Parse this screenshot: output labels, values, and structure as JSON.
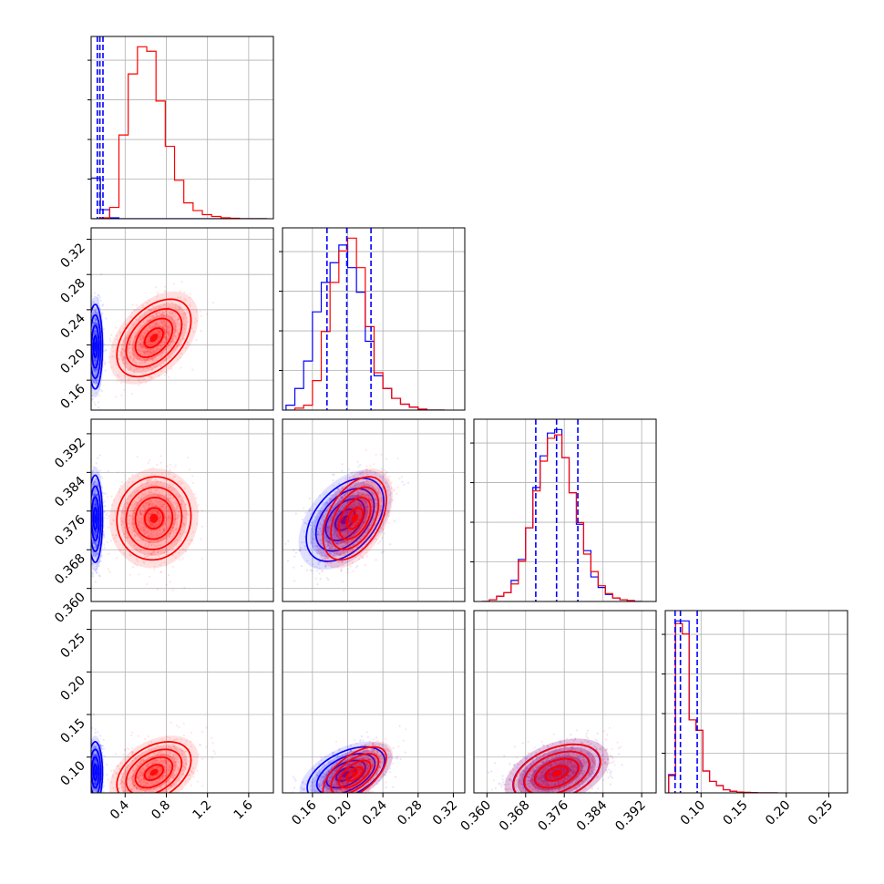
{
  "chart_data": {
    "type": "corner",
    "grid": true,
    "series": [
      {
        "color": "#0000ff"
      },
      {
        "color": "#ff0000"
      }
    ],
    "quantile_lines_color": "#0000ff",
    "parameters": [
      {
        "id": "p0",
        "ticks": [
          0.4,
          0.8,
          1.2,
          1.6
        ],
        "tick_labels": [
          "0.4",
          "0.8",
          "1.2",
          "1.6"
        ]
      },
      {
        "id": "p1",
        "ticks": [
          0.16,
          0.2,
          0.24,
          0.28,
          0.32
        ],
        "tick_labels": [
          "0.16",
          "0.20",
          "0.24",
          "0.28",
          "0.32"
        ]
      },
      {
        "id": "p2",
        "ticks": [
          0.36,
          0.368,
          0.376,
          0.384,
          0.392
        ],
        "tick_labels": [
          "0.360",
          "0.368",
          "0.376",
          "0.384",
          "0.392"
        ]
      },
      {
        "id": "p3",
        "ticks": [
          0.1,
          0.15,
          0.2,
          0.25
        ],
        "tick_labels": [
          "0.10",
          "0.15",
          "0.20",
          "0.25"
        ]
      }
    ],
    "ranges": [
      [
        0.07,
        1.84
      ],
      [
        0.126,
        0.333
      ],
      [
        0.3573,
        0.395
      ],
      [
        0.058,
        0.272
      ]
    ],
    "histograms": [
      {
        "bin_edges": [
          0.07,
          0.16,
          0.25,
          0.34,
          0.43,
          0.52,
          0.61,
          0.7,
          0.79,
          0.88,
          0.97,
          1.06,
          1.15,
          1.24,
          1.33,
          1.42,
          1.51,
          1.6,
          1.69,
          1.78
        ],
        "blue": [
          0.9,
          0.2,
          0.02,
          0,
          0,
          0,
          0,
          0,
          0,
          0,
          0,
          0,
          0,
          0,
          0,
          0,
          0,
          0,
          0
        ],
        "red": [
          0,
          0.02,
          0.25,
          1.85,
          3.2,
          3.8,
          3.7,
          2.6,
          1.6,
          0.85,
          0.35,
          0.18,
          0.09,
          0.05,
          0.02,
          0.01,
          0,
          0,
          0
        ],
        "quantiles": [
          0.13,
          0.155,
          0.185
        ]
      },
      {
        "bin_edges": [
          0.13,
          0.14,
          0.15,
          0.16,
          0.17,
          0.18,
          0.19,
          0.2,
          0.21,
          0.22,
          0.23,
          0.24,
          0.25,
          0.26,
          0.27,
          0.28,
          0.29,
          0.3,
          0.31
        ],
        "blue": [
          0.05,
          0.22,
          0.5,
          1.0,
          1.3,
          1.5,
          1.68,
          1.45,
          1.2,
          0.7,
          0.35,
          0.22,
          0.12,
          0.06,
          0.03,
          0.01,
          0,
          0
        ],
        "red": [
          0,
          0.02,
          0.05,
          0.3,
          0.8,
          1.3,
          1.62,
          1.75,
          1.45,
          0.85,
          0.38,
          0.22,
          0.12,
          0.06,
          0.03,
          0.01,
          0,
          0
        ],
        "quantiles": [
          0.1765,
          0.199,
          0.2265
        ]
      },
      {
        "bin_edges": [
          0.359,
          0.3605,
          0.362,
          0.3635,
          0.365,
          0.3665,
          0.368,
          0.3695,
          0.371,
          0.3725,
          0.374,
          0.3755,
          0.377,
          0.3785,
          0.38,
          0.3815,
          0.383,
          0.3845,
          0.386,
          0.3875,
          0.389,
          0.3905,
          0.392
        ],
        "blue": [
          0,
          0.01,
          0.03,
          0.05,
          0.12,
          0.24,
          0.42,
          0.65,
          0.83,
          0.96,
          0.98,
          0.82,
          0.62,
          0.44,
          0.29,
          0.14,
          0.08,
          0.04,
          0.02,
          0.01,
          0.005,
          0
        ],
        "red": [
          0,
          0.01,
          0.03,
          0.05,
          0.1,
          0.23,
          0.42,
          0.63,
          0.8,
          0.93,
          0.95,
          0.82,
          0.62,
          0.45,
          0.27,
          0.17,
          0.09,
          0.045,
          0.02,
          0.01,
          0.005,
          0
        ],
        "quantiles": [
          0.3701,
          0.3744,
          0.3788
        ]
      },
      {
        "bin_edges": [
          0.062,
          0.07,
          0.078,
          0.086,
          0.094,
          0.102,
          0.11,
          0.118,
          0.126,
          0.134,
          0.142,
          0.15,
          0.158,
          0.166,
          0.174,
          0.182,
          0.19
        ],
        "blue": [
          0.35,
          3.3,
          3.3,
          1.4,
          1.2,
          0.42,
          0.22,
          0.14,
          0.06,
          0.03,
          0.015,
          0.01,
          0.005,
          0,
          0,
          0
        ],
        "red": [
          0.33,
          3.25,
          3.05,
          1.4,
          1.2,
          0.42,
          0.22,
          0.14,
          0.06,
          0.03,
          0.015,
          0.01,
          0.005,
          0,
          0,
          0
        ],
        "quantiles": [
          0.0695,
          0.0758,
          0.0955
        ]
      }
    ],
    "joint_distributions": [
      {
        "x": 0,
        "y": 1,
        "blue": {
          "mx": 0.11,
          "my": 0.198,
          "sx": 0.035,
          "sy": 0.024,
          "rho": 0.0
        },
        "red": {
          "mx": 0.68,
          "my": 0.208,
          "sx": 0.18,
          "sy": 0.022,
          "rho": 0.45
        }
      },
      {
        "x": 0,
        "y": 2,
        "blue": {
          "mx": 0.11,
          "my": 0.3744,
          "sx": 0.035,
          "sy": 0.0045,
          "rho": 0.0
        },
        "red": {
          "mx": 0.68,
          "my": 0.3745,
          "sx": 0.18,
          "sy": 0.0043,
          "rho": 0.05
        }
      },
      {
        "x": 1,
        "y": 2,
        "blue": {
          "mx": 0.197,
          "my": 0.3742,
          "sx": 0.022,
          "sy": 0.0043,
          "rho": 0.45
        },
        "red": {
          "mx": 0.208,
          "my": 0.3745,
          "sx": 0.018,
          "sy": 0.0043,
          "rho": 0.45
        }
      },
      {
        "x": 0,
        "y": 3,
        "blue": {
          "mx": 0.11,
          "my": 0.082,
          "sx": 0.035,
          "sy": 0.018,
          "rho": 0.0
        },
        "red": {
          "mx": 0.68,
          "my": 0.082,
          "sx": 0.18,
          "sy": 0.018,
          "rho": 0.4
        }
      },
      {
        "x": 1,
        "y": 3,
        "blue": {
          "mx": 0.198,
          "my": 0.08,
          "sx": 0.022,
          "sy": 0.016,
          "rho": 0.5
        },
        "red": {
          "mx": 0.208,
          "my": 0.08,
          "sx": 0.018,
          "sy": 0.016,
          "rho": 0.6
        }
      },
      {
        "x": 2,
        "y": 3,
        "blue": {
          "mx": 0.3744,
          "my": 0.081,
          "sx": 0.0045,
          "sy": 0.017,
          "rho": 0.4
        },
        "red": {
          "mx": 0.3745,
          "my": 0.081,
          "sx": 0.0045,
          "sy": 0.017,
          "rho": 0.4
        }
      }
    ]
  }
}
